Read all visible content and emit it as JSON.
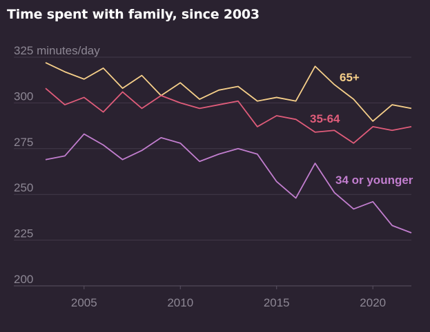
{
  "title": "Time spent with family, since 2003",
  "chart_data": {
    "type": "line",
    "title": "Time spent with family, since 2003",
    "ylabel_unit": "minutes/day",
    "ylim": [
      200,
      325
    ],
    "xlim": [
      2003,
      2022
    ],
    "y_ticks": [
      {
        "value": 325,
        "label": "325 minutes/day"
      },
      {
        "value": 300,
        "label": "300"
      },
      {
        "value": 275,
        "label": "275"
      },
      {
        "value": 250,
        "label": "250"
      },
      {
        "value": 225,
        "label": "225"
      },
      {
        "value": 200,
        "label": "200"
      }
    ],
    "x_ticks": [
      {
        "value": 2005,
        "label": "2005"
      },
      {
        "value": 2010,
        "label": "2010"
      },
      {
        "value": 2015,
        "label": "2015"
      },
      {
        "value": 2020,
        "label": "2020"
      }
    ],
    "grid": true,
    "x": [
      2003,
      2004,
      2005,
      2006,
      2007,
      2008,
      2009,
      2010,
      2011,
      2012,
      2013,
      2014,
      2015,
      2016,
      2017,
      2018,
      2019,
      2020,
      2021,
      2022
    ],
    "series": [
      {
        "name": "65+",
        "color": "#f7d08a",
        "values": [
          322,
          317,
          313,
          319,
          308,
          315,
          304,
          311,
          302,
          307,
          309,
          301,
          303,
          301,
          320,
          310,
          302,
          290,
          299,
          297
        ]
      },
      {
        "name": "35-64",
        "color": "#e05c7a",
        "values": [
          308,
          299,
          303,
          295,
          306,
          297,
          304,
          300,
          297,
          299,
          301,
          287,
          293,
          291,
          284,
          285,
          278,
          287,
          285,
          287
        ]
      },
      {
        "name": "34 or younger",
        "color": "#c27ecf",
        "values": [
          269,
          271,
          283,
          277,
          269,
          274,
          281,
          278,
          268,
          272,
          275,
          272,
          257,
          248,
          267,
          251,
          242,
          246,
          233,
          229
        ]
      }
    ]
  }
}
